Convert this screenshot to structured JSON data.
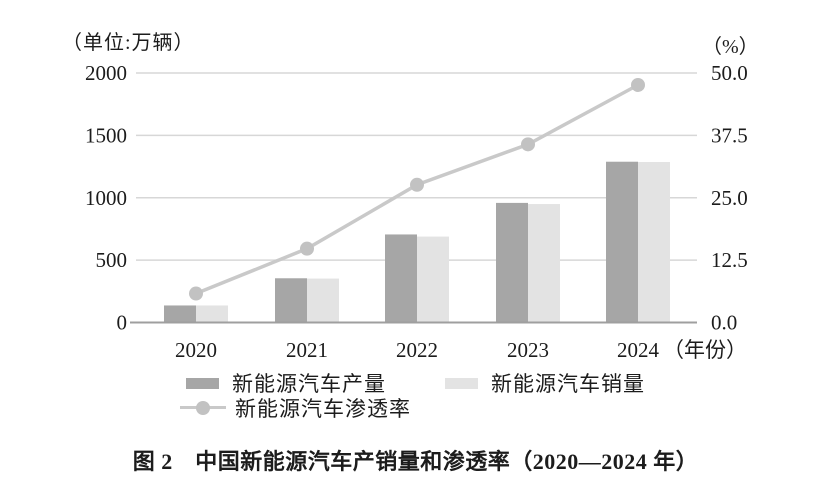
{
  "figure": {
    "left_axis_unit": "（单位:万辆）",
    "right_axis_unit": "（%）",
    "x_axis_suffix": "（年份）",
    "caption": "图 2　中国新能源汽车产销量和渗透率（2020—2024 年）"
  },
  "legend": {
    "production_label": "新能源汽车产量",
    "sales_label": "新能源汽车销量",
    "penetration_label": "新能源汽车渗透率"
  },
  "colors": {
    "production_bar": "#a6a6a6",
    "sales_bar": "#e3e3e3",
    "penetration_line": "#c9c9c9",
    "penetration_dot": "#c2c2c2",
    "gridline": "#d7d7d7",
    "axis_line": "#9f9f9f",
    "text": "#1c1c1c"
  },
  "chart_data": {
    "type": "bar",
    "subtype": "grouped-bars-with-line-overlay",
    "title": "图 2　中国新能源汽车产销量和渗透率（2020—2024 年）",
    "categories": [
      "2020",
      "2021",
      "2022",
      "2023",
      "2024"
    ],
    "series": [
      {
        "name": "新能源汽车产量",
        "type": "bar",
        "axis": "left",
        "values": [
          136.6,
          354.5,
          705.8,
          958.7,
          1288.8
        ]
      },
      {
        "name": "新能源汽车销量",
        "type": "bar",
        "axis": "left",
        "values": [
          136.7,
          352.1,
          688.7,
          949.5,
          1286.6
        ]
      },
      {
        "name": "新能源汽车渗透率",
        "type": "line",
        "axis": "right",
        "values": [
          5.8,
          14.8,
          27.6,
          35.7,
          47.6
        ]
      }
    ],
    "left_axis": {
      "unit": "（单位:万辆）",
      "ticks": [
        "0",
        "500",
        "1000",
        "1500",
        "2000"
      ],
      "range": [
        0,
        2000
      ]
    },
    "right_axis": {
      "unit": "（%）",
      "ticks": [
        "0.0",
        "12.5",
        "25.0",
        "37.5",
        "50.0"
      ],
      "range": [
        0,
        50
      ]
    },
    "x_axis": {
      "suffix": "（年份）"
    },
    "grid": true,
    "legend_position": "bottom"
  }
}
